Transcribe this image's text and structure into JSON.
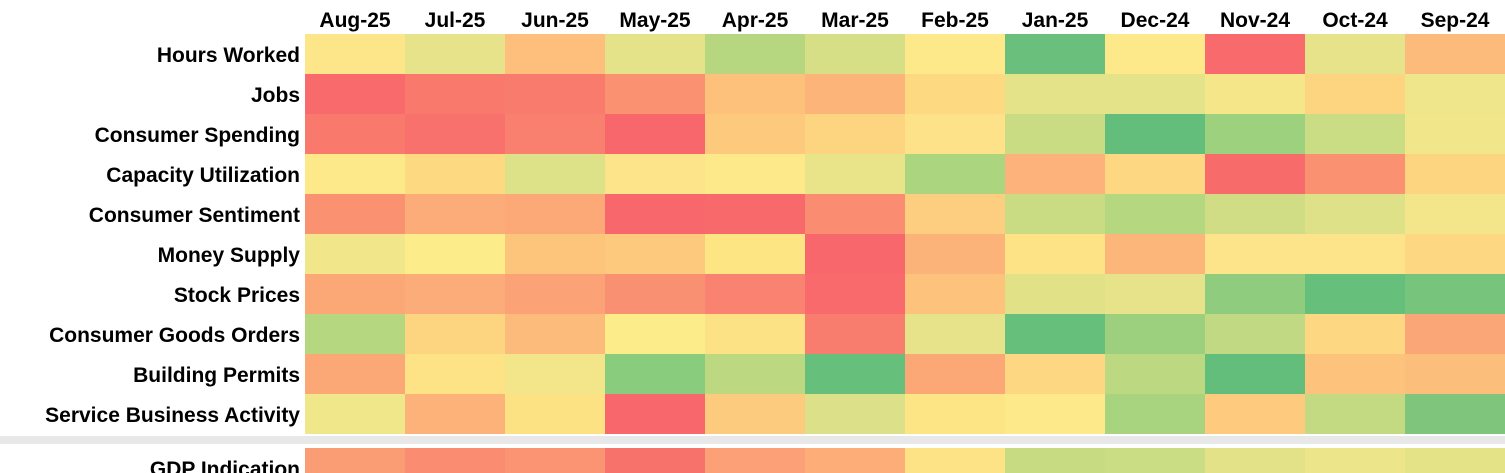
{
  "chart_data": {
    "type": "heatmap",
    "columns": [
      "Aug-25",
      "Jul-25",
      "Jun-25",
      "May-25",
      "Apr-25",
      "Mar-25",
      "Feb-25",
      "Jan-25",
      "Dec-24",
      "Nov-24",
      "Oct-24",
      "Sep-24"
    ],
    "rows": [
      {
        "label": "Hours Worked",
        "colors": [
          "#fde68a",
          "#e6e38a",
          "#fdbf7b",
          "#e5e38a",
          "#b6d77f",
          "#d7df86",
          "#fde98a",
          "#69bf7b",
          "#fde88a",
          "#f86a6b",
          "#e6e38a",
          "#fcbb7a"
        ]
      },
      {
        "label": "Jobs",
        "colors": [
          "#f86a6b",
          "#f97a6d",
          "#f97b6d",
          "#fa9272",
          "#fdc17c",
          "#fcb479",
          "#fdd982",
          "#e5e38a",
          "#e5e38a",
          "#f6e68a",
          "#fdd580",
          "#efe58a"
        ]
      },
      {
        "label": "Consumer Spending",
        "colors": [
          "#f97a6d",
          "#f8716c",
          "#f97f6e",
          "#f8676b",
          "#fdc97d",
          "#fdd580",
          "#fde289",
          "#c9db83",
          "#63be7b",
          "#9ed17e",
          "#cadc84",
          "#f1e68a"
        ]
      },
      {
        "label": "Capacity Utilization",
        "colors": [
          "#fde98a",
          "#fdda82",
          "#dde187",
          "#fde48a",
          "#fde98a",
          "#e9e48a",
          "#acd57f",
          "#fcb27a",
          "#fdd781",
          "#f86b6b",
          "#fa9272",
          "#fdd580"
        ]
      },
      {
        "label": "Consumer Sentiment",
        "colors": [
          "#fa9272",
          "#fcac78",
          "#fca977",
          "#f8676b",
          "#f8696b",
          "#fa8c71",
          "#fdce7f",
          "#c9db83",
          "#b4d780",
          "#d1dd85",
          "#dfe188",
          "#f3e68a"
        ]
      },
      {
        "label": "Money Supply",
        "colors": [
          "#f2e68a",
          "#fdec8a",
          "#fdc57c",
          "#fdc97d",
          "#fde584",
          "#f8676b",
          "#fcb379",
          "#fde385",
          "#fcb679",
          "#fde48a",
          "#fde48a",
          "#fdd781"
        ]
      },
      {
        "label": "Stock Prices",
        "colors": [
          "#fca876",
          "#fcac78",
          "#fba376",
          "#fa9072",
          "#f98270",
          "#f86a6b",
          "#fdc27c",
          "#e1e288",
          "#e6e38a",
          "#8fcc7e",
          "#66bf7b",
          "#77c47c"
        ]
      },
      {
        "label": "Consumer Goods Orders",
        "colors": [
          "#b4d780",
          "#fdd480",
          "#fcbb7a",
          "#fdec8a",
          "#fde185",
          "#f97d6e",
          "#e7e38a",
          "#66bf7b",
          "#9dd07e",
          "#c1d982",
          "#fdd781",
          "#fba676"
        ]
      },
      {
        "label": "Building Permits",
        "colors": [
          "#fca876",
          "#fde385",
          "#f3e68a",
          "#8acc7e",
          "#bcd881",
          "#66bf7b",
          "#fba776",
          "#fdd781",
          "#bcd881",
          "#63be7b",
          "#fdc37c",
          "#fcbf7b"
        ]
      },
      {
        "label": "Service Business Activity",
        "colors": [
          "#f0e68a",
          "#fcb279",
          "#fde284",
          "#f8676b",
          "#fdcb7e",
          "#dce088",
          "#fde485",
          "#fde98a",
          "#a8d47f",
          "#fdca7e",
          "#c3da82",
          "#7fc67c"
        ]
      },
      {
        "label": "GDP Indication",
        "colors": [
          "#fa9c74",
          "#fa8c71",
          "#fa9473",
          "#f8726c",
          "#fca177",
          "#fcad78",
          "#fde385",
          "#c7db83",
          "#cadc84",
          "#e3e288",
          "#ecE58a",
          "#e4e388"
        ]
      }
    ],
    "separator_before_row": 10,
    "legend": "none",
    "grid": false
  }
}
